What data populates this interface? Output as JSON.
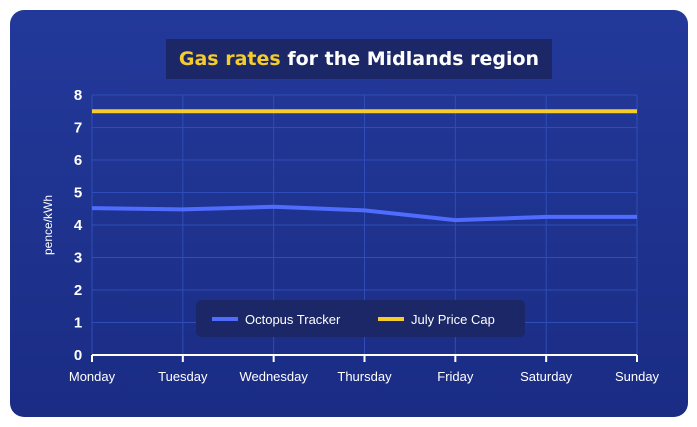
{
  "title": {
    "highlight": "Gas rates",
    "rest": " for the Midlands region"
  },
  "colors": {
    "background": "#1f3290",
    "title_box": "#1b2766",
    "title_highlight": "#f5cc2a",
    "octopus": "#4f6cff",
    "price_cap": "#f5cc2a",
    "grid": "#2f4db8",
    "legend_bg": "#1b2766"
  },
  "chart_data": {
    "type": "line",
    "categories": [
      "Monday",
      "Tuesday",
      "Wednesday",
      "Thursday",
      "Friday",
      "Saturday",
      "Sunday"
    ],
    "ylabel": "pence/kWh",
    "xlabel": "",
    "ylim": [
      0,
      8
    ],
    "yticks": [
      "0",
      "1",
      "2",
      "3",
      "4",
      "5",
      "6",
      "7",
      "8"
    ],
    "grid": true,
    "legend_position": "bottom-center",
    "series": [
      {
        "name": "Octopus Tracker",
        "color": "#4f6cff",
        "values": [
          4.52,
          4.48,
          4.56,
          4.45,
          4.15,
          4.25,
          4.25
        ]
      },
      {
        "name": "July Price Cap",
        "color": "#f5cc2a",
        "values": [
          7.5,
          7.5,
          7.5,
          7.5,
          7.5,
          7.5,
          7.5
        ]
      }
    ]
  }
}
